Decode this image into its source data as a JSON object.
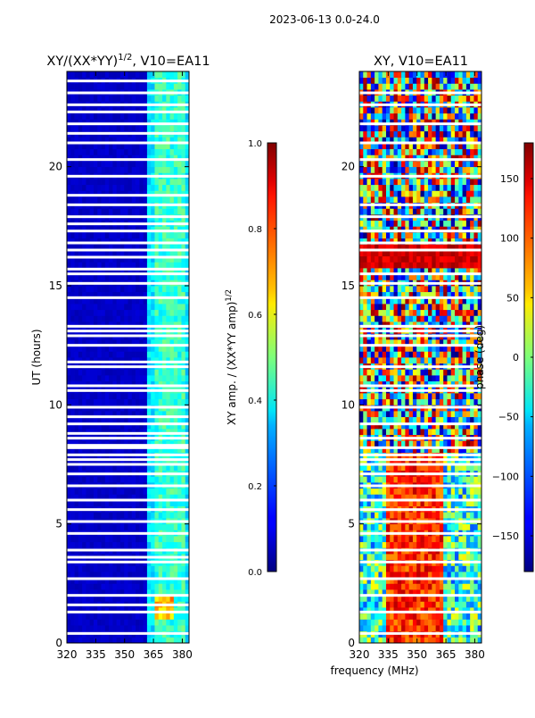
{
  "suptitle": "2023-06-13 0.0-24.0",
  "shared_xlabel": "frequency (MHz)",
  "chart_data": [
    {
      "type": "heatmap",
      "id": "amp",
      "title_main": "XY/(XX*YY)",
      "title_exp": "1/2",
      "title_tail": ", V10=EA11",
      "xlabel": "frequency (MHz)",
      "ylabel": "UT (hours)",
      "xlim": [
        320,
        383.5
      ],
      "ylim": [
        0,
        24
      ],
      "xticks": [
        320,
        335,
        350,
        365,
        380
      ],
      "yticks": [
        0,
        5,
        10,
        15,
        20
      ],
      "colorbar": {
        "label_main": "XY amp. / (XX*YY amp)",
        "label_exp": "1/2",
        "range": [
          0.0,
          1.0
        ],
        "ticks": [
          "0.0",
          "0.2",
          "0.4",
          "0.6",
          "0.8",
          "1.0"
        ],
        "colormap": "jet"
      },
      "typical_values": {
        "band_320_361": 0.05,
        "band_361_365": 0.3,
        "band_365_380": 0.35,
        "band_380_383": 0.3
      },
      "flagged_hours": [
        0.4,
        1.3,
        1.6,
        2.0,
        2.7,
        3.4,
        3.6,
        3.9,
        4.6,
        5.1,
        5.6,
        6.0,
        6.6,
        7.1,
        7.5,
        7.7,
        7.9,
        8.2,
        8.3,
        8.6,
        8.8,
        9.2,
        9.5,
        9.9,
        10.6,
        10.8,
        11.6,
        11.8,
        12.5,
        12.9,
        13.1,
        13.3,
        14.5,
        15.1,
        15.5,
        15.7,
        16.2,
        16.5,
        16.8,
        17.3,
        17.6,
        17.9,
        18.4,
        18.8,
        19.6,
        20.3,
        21.0,
        21.4,
        21.8,
        22.3,
        22.6,
        23.1,
        23.6
      ]
    },
    {
      "type": "heatmap",
      "id": "phase",
      "title_main": "XY, V10=EA11",
      "xlabel": "frequency (MHz)",
      "ylabel": "",
      "xlim": [
        320,
        383.5
      ],
      "ylim": [
        0,
        24
      ],
      "xticks": [
        320,
        335,
        350,
        365,
        380
      ],
      "yticks": [
        0,
        5,
        10,
        15,
        20
      ],
      "colorbar": {
        "label_main": "phase (deg)",
        "range": [
          -180,
          180
        ],
        "ticks": [
          "−150",
          "−100",
          "−50",
          "0",
          "50",
          "100",
          "150"
        ],
        "colormap": "jet"
      },
      "typical_values": {
        "center_335_360_deg": 120,
        "edges_deg": -30
      },
      "flagged_hours": [
        0.4,
        1.3,
        2.0,
        2.7,
        3.4,
        3.9,
        4.6,
        5.1,
        5.6,
        6.0,
        6.6,
        7.1,
        7.5,
        7.7,
        7.9,
        8.2,
        8.6,
        9.2,
        9.9,
        10.6,
        10.8,
        11.6,
        12.5,
        12.9,
        13.1,
        13.3,
        14.5,
        15.1,
        15.5,
        16.5,
        16.8,
        17.3,
        17.9,
        18.4,
        19.6,
        20.3,
        21.0,
        21.8,
        22.6,
        23.1
      ]
    }
  ]
}
